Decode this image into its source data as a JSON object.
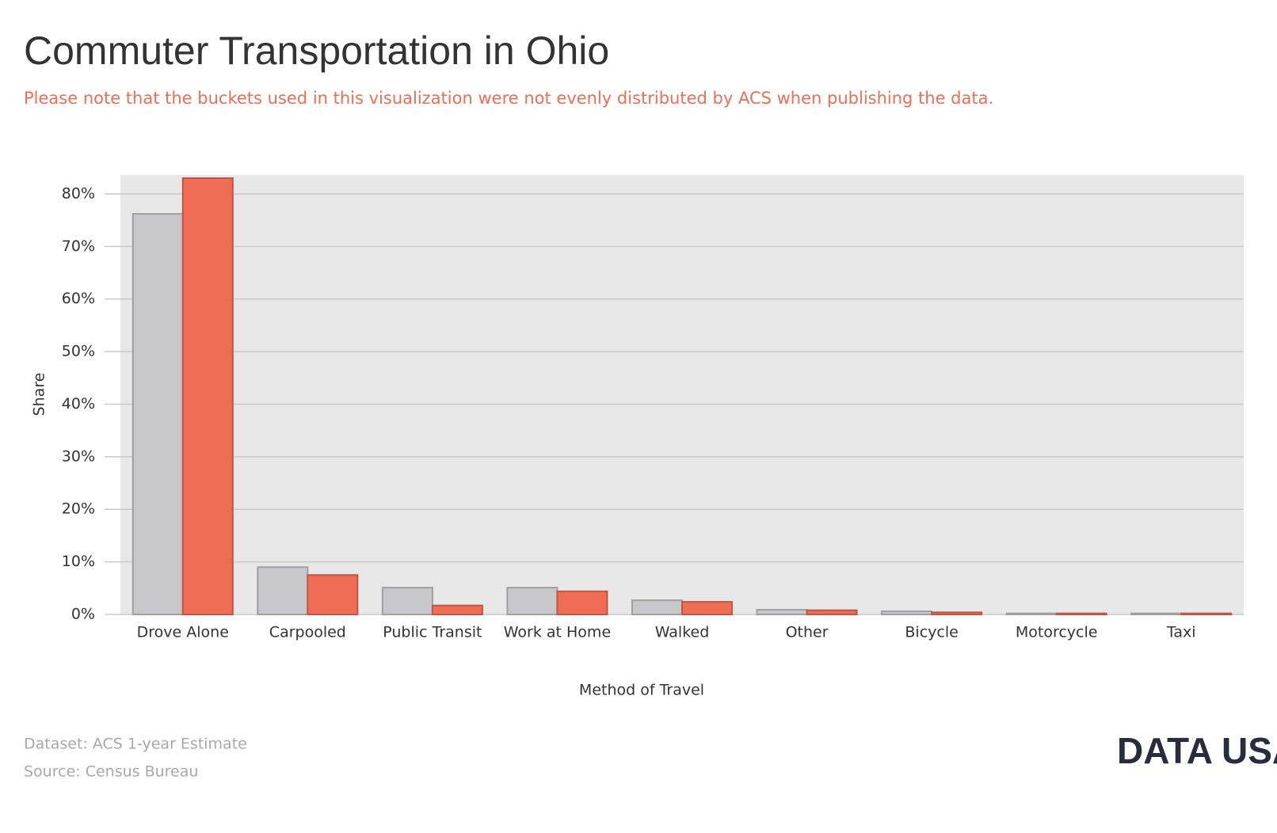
{
  "chart_data": {
    "type": "bar",
    "title": "Commuter Transportation in Ohio",
    "subtitle": "Please note that the buckets used in this visualization were not evenly distributed by ACS when publishing the data.",
    "x_label": "Method of Travel",
    "y_label": "Share",
    "categories": [
      "Drove Alone",
      "Carpooled",
      "Public Transit",
      "Work at Home",
      "Walked",
      "Other",
      "Bicycle",
      "Motorcycle",
      "Taxi"
    ],
    "series": [
      {
        "color": "#c8c7ca",
        "values": [
          76.2,
          9.0,
          5.1,
          5.1,
          2.7,
          0.9,
          0.6,
          0.2,
          0.2
        ]
      },
      {
        "color": "#ef6d55",
        "values": [
          83.0,
          7.5,
          1.7,
          4.4,
          2.4,
          0.8,
          0.4,
          0.2,
          0.2
        ]
      }
    ],
    "ylim": [
      0,
      83.6
    ],
    "yticks": [
      {
        "value": 0,
        "label": "0%"
      },
      {
        "value": 10,
        "label": "10%"
      },
      {
        "value": 20,
        "label": "20%"
      },
      {
        "value": 30,
        "label": "30%"
      },
      {
        "value": 40,
        "label": "40%"
      },
      {
        "value": 50,
        "label": "50%"
      },
      {
        "value": 60,
        "label": "60%"
      },
      {
        "value": 70,
        "label": "70%"
      },
      {
        "value": 80,
        "label": "80%"
      }
    ],
    "grid": true,
    "footer": {
      "dataset": "Dataset: ACS 1-year Estimate",
      "source": "Source: Census Bureau",
      "logo": "DATA USA"
    }
  }
}
